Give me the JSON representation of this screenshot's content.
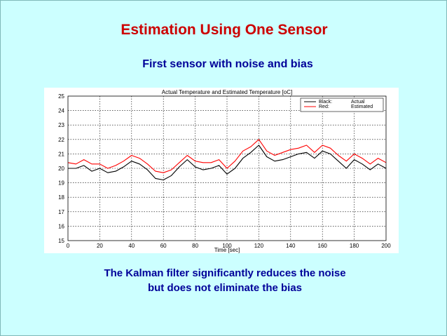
{
  "slide": {
    "title": "Estimation Using One Sensor",
    "subtitle": "First sensor with noise and bias",
    "caption_line1": "The Kalman filter significantly reduces the noise",
    "caption_line2": "but does not eliminate the bias",
    "colors": {
      "background": "#ccffff",
      "title": "#cc0000",
      "text": "#000099"
    }
  },
  "chart_data": {
    "type": "line",
    "title": "Actual Temperature and Estimated Temperature [oC]",
    "xlabel": "Time [sec]",
    "ylabel": "",
    "xlim": [
      0,
      200
    ],
    "ylim": [
      15,
      25
    ],
    "xticks": [
      0,
      20,
      40,
      60,
      80,
      100,
      120,
      140,
      160,
      180,
      200
    ],
    "yticks": [
      15,
      16,
      17,
      18,
      19,
      20,
      21,
      22,
      23,
      24,
      25
    ],
    "grid": true,
    "legend_position": "top-right",
    "legend": [
      {
        "key": "Black:",
        "label": "Actual",
        "color": "#000000"
      },
      {
        "key": "Red:",
        "label": "Estimated",
        "color": "#ff0000"
      }
    ],
    "x": [
      0,
      5,
      10,
      15,
      20,
      25,
      30,
      35,
      40,
      45,
      50,
      55,
      60,
      65,
      70,
      75,
      80,
      85,
      90,
      95,
      100,
      105,
      110,
      115,
      120,
      125,
      130,
      135,
      140,
      145,
      150,
      155,
      160,
      165,
      170,
      175,
      180,
      185,
      190,
      195,
      200
    ],
    "series": [
      {
        "name": "Actual",
        "color": "#000000",
        "values": [
          20.0,
          20.0,
          20.2,
          19.8,
          20.0,
          19.7,
          19.8,
          20.1,
          20.5,
          20.3,
          19.9,
          19.3,
          19.2,
          19.5,
          20.1,
          20.6,
          20.1,
          19.9,
          20.0,
          20.2,
          19.6,
          20.0,
          20.7,
          21.1,
          21.6,
          20.8,
          20.5,
          20.6,
          20.8,
          21.0,
          21.1,
          20.7,
          21.2,
          21.0,
          20.5,
          20.0,
          20.6,
          20.3,
          19.9,
          20.3,
          20.0
        ]
      },
      {
        "name": "Estimated",
        "color": "#ff0000",
        "values": [
          20.4,
          20.3,
          20.6,
          20.3,
          20.3,
          20.0,
          20.2,
          20.5,
          20.9,
          20.7,
          20.3,
          19.8,
          19.7,
          19.9,
          20.4,
          20.9,
          20.5,
          20.4,
          20.4,
          20.6,
          20.0,
          20.5,
          21.2,
          21.5,
          22.0,
          21.2,
          20.9,
          21.1,
          21.3,
          21.4,
          21.6,
          21.1,
          21.6,
          21.4,
          20.9,
          20.5,
          21.0,
          20.7,
          20.3,
          20.7,
          20.4
        ]
      }
    ]
  }
}
